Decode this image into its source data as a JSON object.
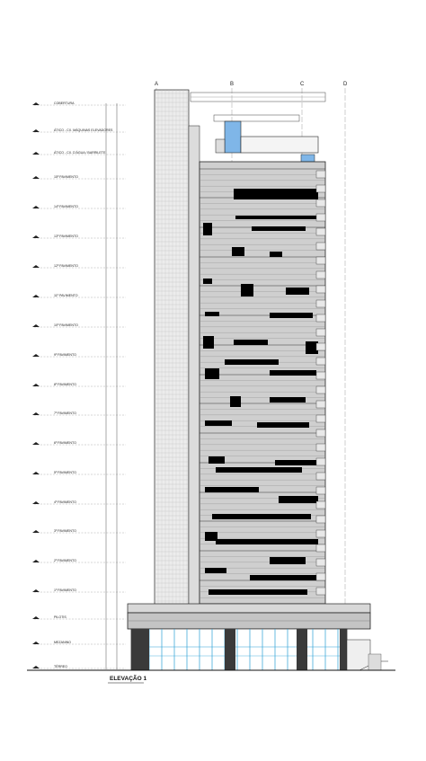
{
  "drawing": {
    "title": "ELEVAÇÃO 1",
    "grid_axes": [
      "A",
      "B",
      "C",
      "D"
    ],
    "levels": [
      {
        "label": "COBERTURA"
      },
      {
        "label": "ÁTICO - CX. MÁQUINAS ELEVADORES"
      },
      {
        "label": "ÁTICO - CX. D'ÁGUA / BARRILETE"
      },
      {
        "label": "15º PAVIMENTO"
      },
      {
        "label": "14º PAVIMENTO"
      },
      {
        "label": "13º PAVIMENTO"
      },
      {
        "label": "12º PAVIMENTO"
      },
      {
        "label": "11º PAVIMENTO"
      },
      {
        "label": "10º PAVIMENTO"
      },
      {
        "label": "9º PAVIMENTO"
      },
      {
        "label": "8º PAVIMENTO"
      },
      {
        "label": "7º PAVIMENTO"
      },
      {
        "label": "6º PAVIMENTO"
      },
      {
        "label": "5º PAVIMENTO"
      },
      {
        "label": "4º PAVIMENTO"
      },
      {
        "label": "3º PAVIMENTO"
      },
      {
        "label": "2º PAVIMENTO"
      },
      {
        "label": "1º PAVIMENTO"
      },
      {
        "label": "PILOTIS"
      },
      {
        "label": "MEZANINO"
      },
      {
        "label": "TÉRREO"
      }
    ],
    "colors": {
      "line": "#222222",
      "panel": "#c9c9c9",
      "panel_dark": "#000000",
      "glass": "#2a9fd6",
      "tower": "#e6e6e6",
      "accent_blue": "#7fb6e8"
    }
  }
}
